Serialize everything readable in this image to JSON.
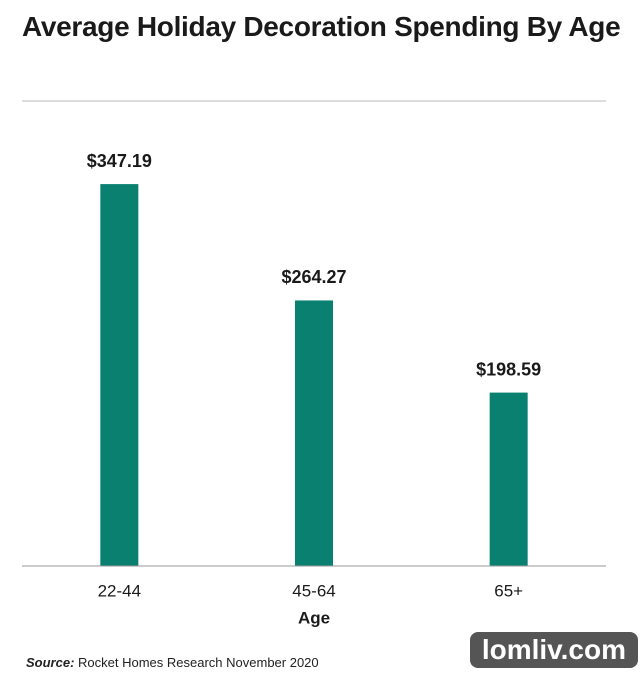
{
  "chart_data": {
    "type": "bar",
    "title": "Average Holiday Decoration Spending By Age",
    "x_label": "Age",
    "categories": [
      "22-44",
      "45-64",
      "65+"
    ],
    "values": [
      347.19,
      264.27,
      198.59
    ],
    "value_labels": [
      "$347.19",
      "$264.27",
      "$198.59"
    ],
    "color": "#0a8170",
    "ylim": [
      75,
      400
    ],
    "source_label": "Source:",
    "source": "Rocket Homes Research November 2020",
    "watermark": "lomliv.com"
  }
}
